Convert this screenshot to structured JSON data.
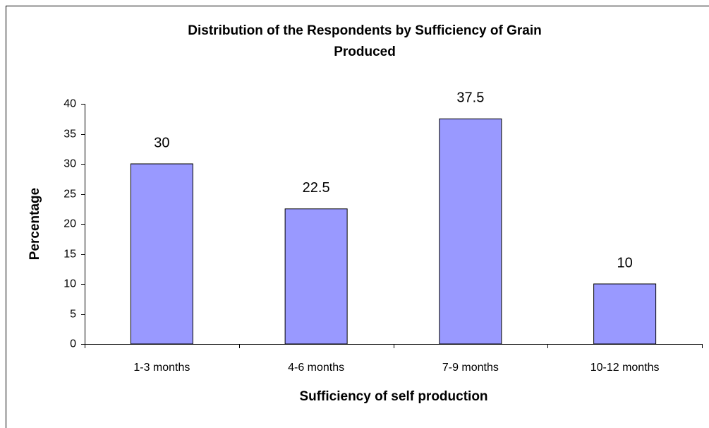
{
  "chart_data": {
    "type": "bar",
    "title": [
      "Distribution of the Respondents by Sufficiency of Grain",
      "Produced"
    ],
    "xlabel": "Sufficiency of self production",
    "ylabel": "Percentage",
    "categories": [
      "1-3 months",
      "4-6 months",
      "7-9 months",
      "10-12 months"
    ],
    "values": [
      30,
      22.5,
      37.5,
      10
    ],
    "color": "#9999ff",
    "ylim": [
      0,
      40
    ],
    "yticks": [
      0,
      5,
      10,
      15,
      20,
      25,
      30,
      35,
      40
    ],
    "grid": false
  }
}
